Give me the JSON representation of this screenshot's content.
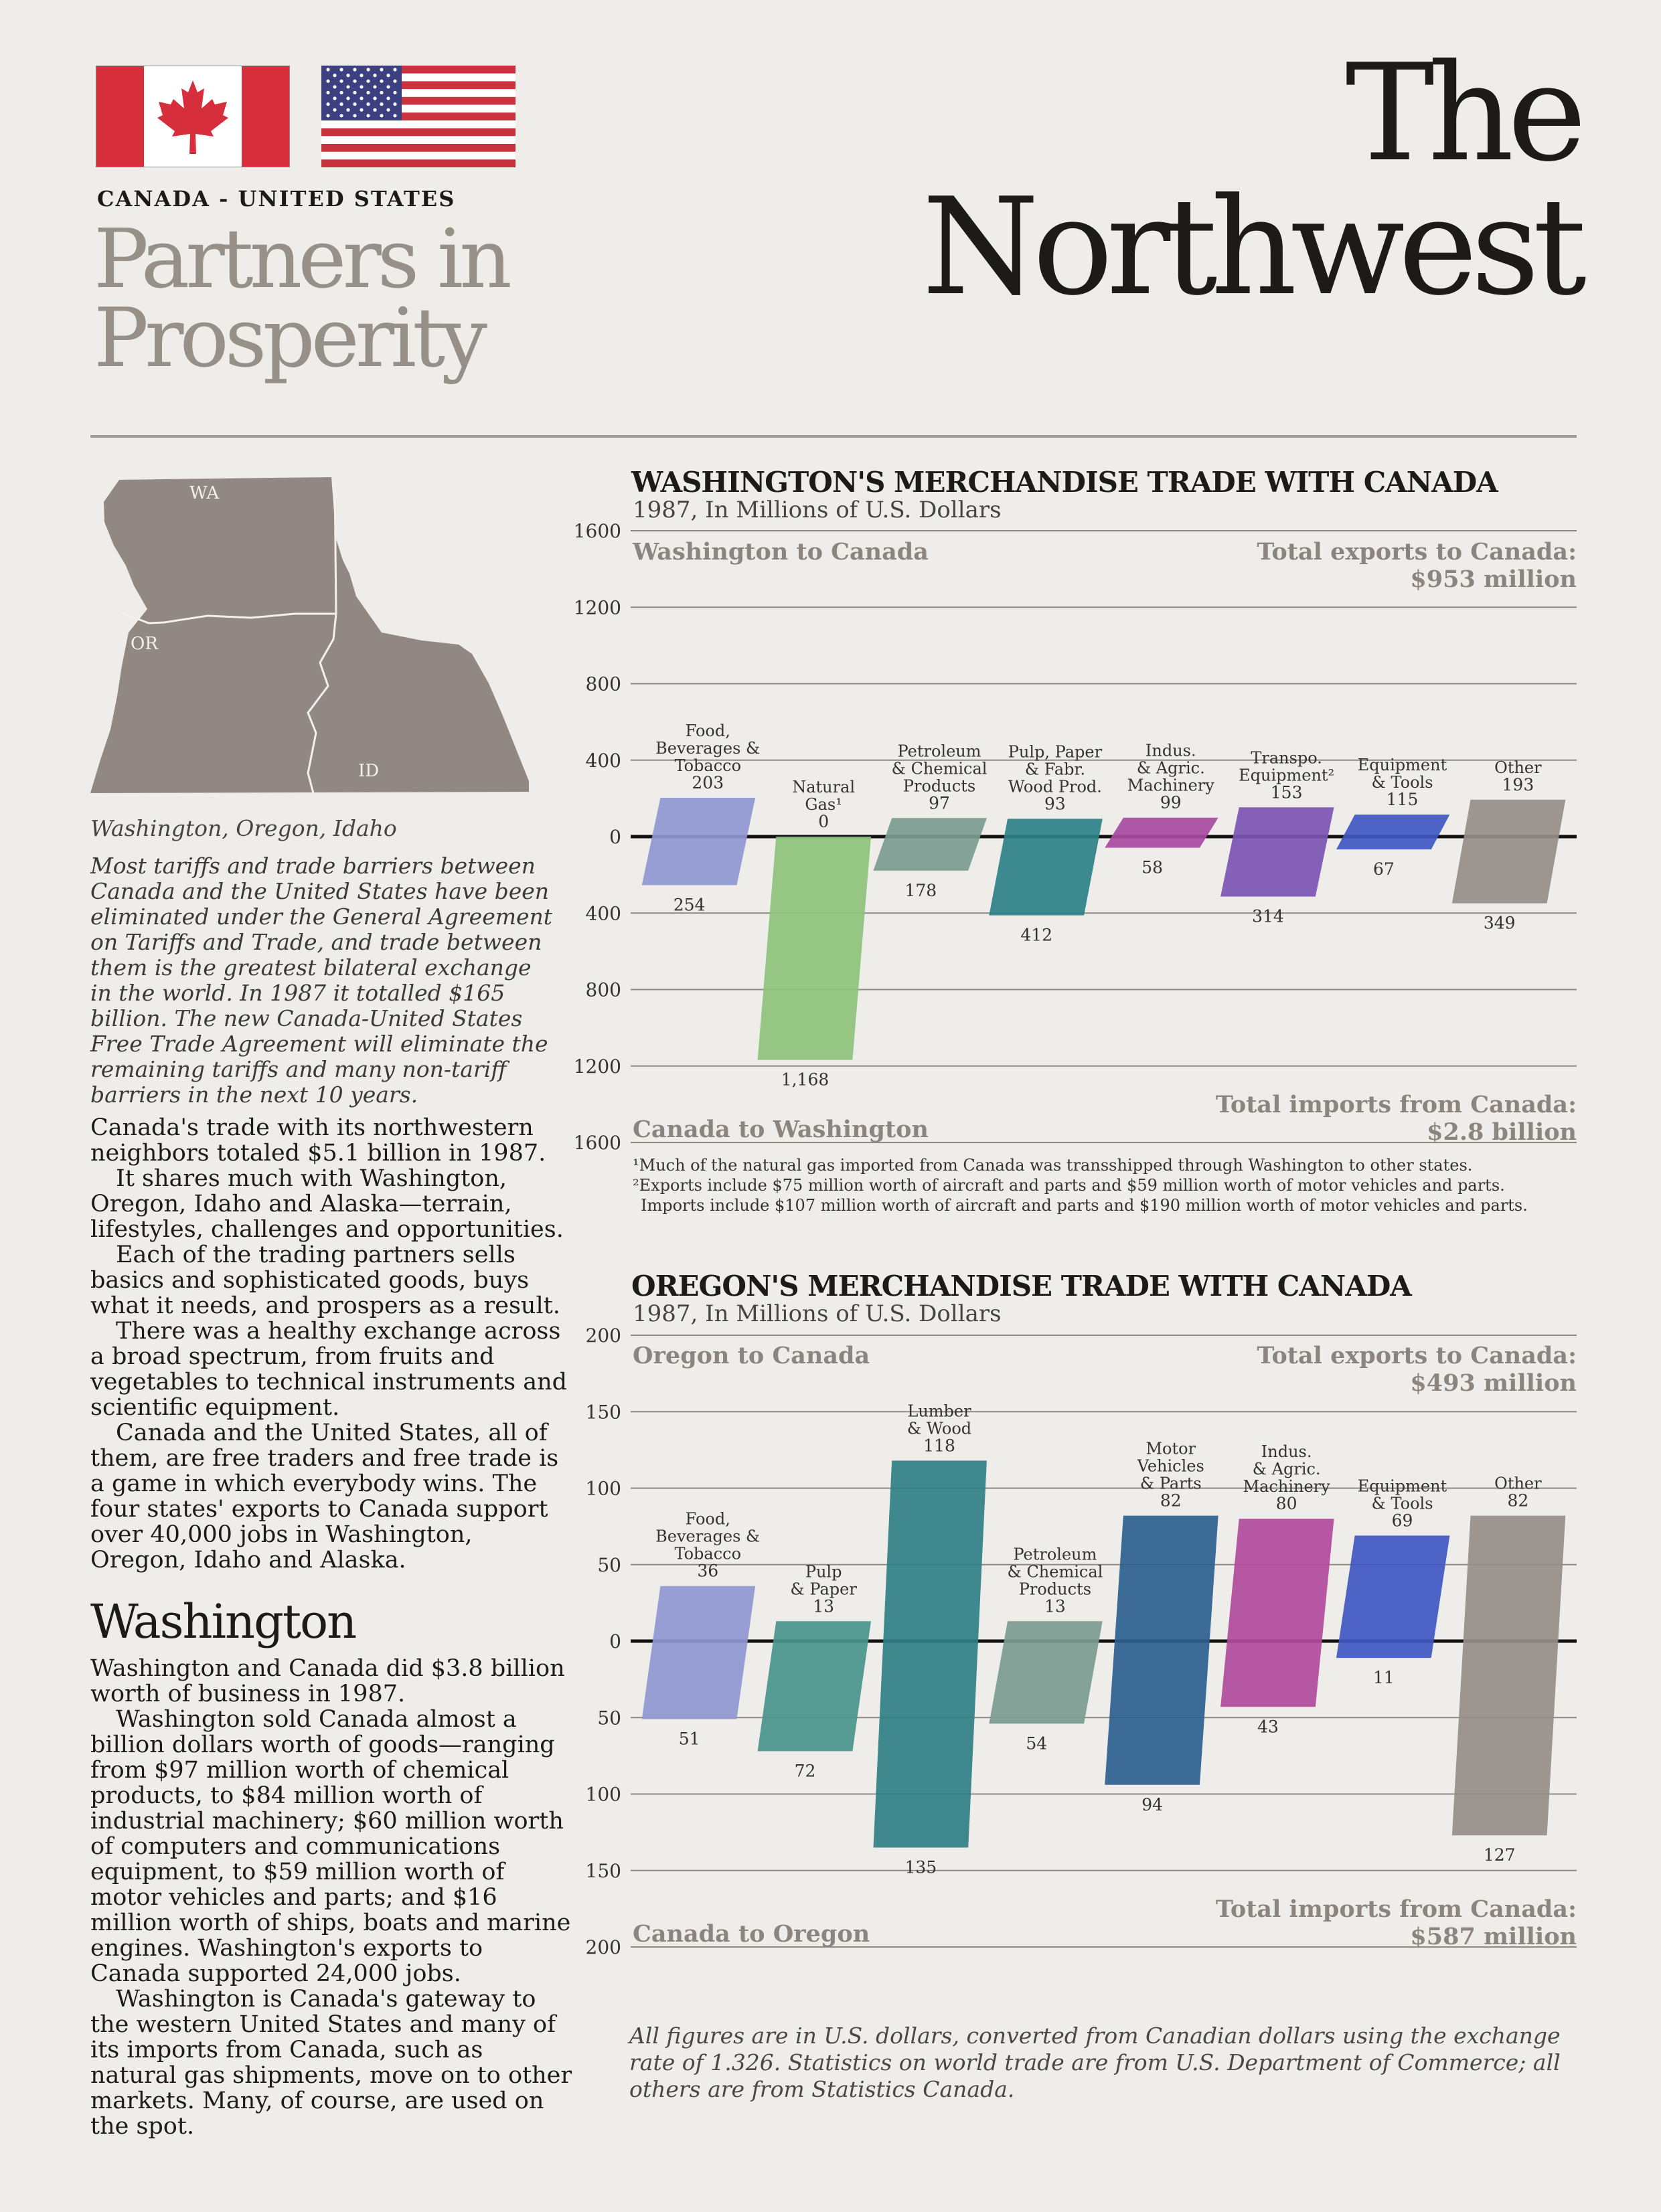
{
  "page": {
    "title": "The Northwest",
    "countries": "CANADA - UNITED STATES",
    "tagline_line1": "Partners in",
    "tagline_line2": "Prosperity"
  },
  "map": {
    "labels": [
      "WA",
      "OR",
      "ID"
    ],
    "caption": "Washington, Oregon, Idaho",
    "color": "#928883"
  },
  "intro": "Most tariffs and trade barriers between Canada and the United States have been eliminated under the General Agreement on Tariffs and Trade, and trade between them is the greatest bilateral exchange in the world. In 1987 it totalled $165 billion. The new Canada-United States Free Trade Agreement will eliminate the remaining tariffs and many non-tariff barriers in the next 10 years.",
  "body": [
    "Canada's trade with its northwestern neighbors totaled $5.1 billion in 1987.",
    "It shares much with Washington, Oregon, Idaho and Alaska—terrain, lifestyles, challenges and opportunities.",
    "Each of the trading partners sells basics and sophisticated goods, buys what it needs, and prospers as a result.",
    "There was a healthy exchange across a broad spectrum, from fruits and vegetables to technical instruments and scientific equipment.",
    "Canada and the United States, all of them, are free traders and free trade is a game in which everybody wins. The four states' exports to Canada support over 40,000 jobs in Washington, Oregon, Idaho and Alaska."
  ],
  "washington_section": {
    "heading": "Washington",
    "paragraphs": [
      "Washington and Canada did $3.8 billion worth of business in 1987.",
      "Washington sold Canada almost a billion dollars worth of goods—ranging from $97 million worth of chemical products, to $84 million worth of industrial machinery; $60 million worth of computers and communications equipment, to $59 million worth of motor vehicles and parts; and $16 million worth of ships, boats and marine engines. Washington's exports to Canada supported 24,000 jobs.",
      "Washington is Canada's gateway to the western United States and many of its imports from Canada, such as natural gas shipments, move on to other markets. Many, of course, are used on the spot."
    ]
  },
  "chart_data": [
    {
      "type": "bar",
      "title": "WASHINGTON'S MERCHANDISE TRADE WITH CANADA",
      "subtitle": "1987, In Millions of U.S. Dollars",
      "export_label": "Washington to Canada",
      "import_label": "Canada to Washington",
      "total_exports_label": "Total exports to Canada:",
      "total_exports_value": "$953 million",
      "total_imports_label": "Total imports from Canada:",
      "total_imports_value": "$2.8 billion",
      "ylim": [
        -1600,
        1600
      ],
      "y_ticks": [
        "1600",
        "1200",
        "800",
        "400",
        "0",
        "400",
        "800",
        "1200",
        "1600"
      ],
      "categories": [
        {
          "label": [
            "Food,",
            "Beverages &",
            "Tobacco"
          ],
          "export": 203,
          "export_label": "203",
          "import": 254,
          "import_label": "254",
          "color": "#8f97d0"
        },
        {
          "label": [
            "Natural",
            "Gas¹"
          ],
          "export": 0,
          "export_label": "0",
          "import": 1168,
          "import_label": "1,168",
          "color": "#8ec27b"
        },
        {
          "label": [
            "Petroleum",
            "& Chemical",
            "Products"
          ],
          "export": 97,
          "export_label": "97",
          "import": 178,
          "import_label": "178",
          "color": "#7c9b90"
        },
        {
          "label": [
            "Pulp, Paper",
            "& Fabr.",
            "Wood Prod."
          ],
          "export": 93,
          "export_label": "93",
          "import": 412,
          "import_label": "412",
          "color": "#2e8088"
        },
        {
          "label": [
            "Indus.",
            "& Agric.",
            "Machinery"
          ],
          "export": 99,
          "export_label": "99",
          "import": 58,
          "import_label": "58",
          "color": "#a84aa0"
        },
        {
          "label": [
            "Transpo.",
            "Equipment²"
          ],
          "export": 153,
          "export_label": "153",
          "import": 314,
          "import_label": "314",
          "color": "#7c54b3"
        },
        {
          "label": [
            "Equipment",
            "& Tools"
          ],
          "export": 115,
          "export_label": "115",
          "import": 67,
          "import_label": "67",
          "color": "#3f57c2"
        },
        {
          "label": [
            "Other"
          ],
          "export": 193,
          "export_label": "193",
          "import": 349,
          "import_label": "349",
          "color": "#958d88"
        }
      ],
      "footnotes": [
        "¹Much of the natural gas imported from Canada was transshipped through Washington to other states.",
        "²Exports include $75 million worth of aircraft and parts and $59 million worth of motor vehicles and parts.",
        "Imports include $107 million worth of aircraft and parts and $190 million worth of motor vehicles and parts."
      ]
    },
    {
      "type": "bar",
      "title": "OREGON'S MERCHANDISE TRADE WITH CANADA",
      "subtitle": "1987, In Millions of U.S. Dollars",
      "export_label": "Oregon to Canada",
      "import_label": "Canada to Oregon",
      "total_exports_label": "Total exports to Canada:",
      "total_exports_value": "$493 million",
      "total_imports_label": "Total imports from Canada:",
      "total_imports_value": "$587 million",
      "ylim": [
        -200,
        200
      ],
      "y_ticks": [
        "200",
        "150",
        "100",
        "50",
        "0",
        "50",
        "100",
        "150",
        "200"
      ],
      "categories": [
        {
          "label": [
            "Food,",
            "Beverages &",
            "Tobacco"
          ],
          "export": 36,
          "export_label": "36",
          "import": 51,
          "import_label": "51",
          "color": "#8f97d0"
        },
        {
          "label": [
            "Pulp",
            "& Paper"
          ],
          "export": 13,
          "export_label": "13",
          "import": 72,
          "import_label": "72",
          "color": "#4a958c"
        },
        {
          "label": [
            "Lumber",
            "& Wood"
          ],
          "export": 118,
          "export_label": "118",
          "import": 135,
          "import_label": "135",
          "color": "#2f7f85"
        },
        {
          "label": [
            "Petroleum",
            "& Chemical",
            "Products"
          ],
          "export": 13,
          "export_label": "13",
          "import": 54,
          "import_label": "54",
          "color": "#7c9b90"
        },
        {
          "label": [
            "Motor",
            "Vehicles",
            "& Parts"
          ],
          "export": 82,
          "export_label": "82",
          "import": 94,
          "import_label": "94",
          "color": "#2c5f8f"
        },
        {
          "label": [
            "Indus.",
            "& Agric.",
            "Machinery"
          ],
          "export": 80,
          "export_label": "80",
          "import": 43,
          "import_label": "43",
          "color": "#b04a9c"
        },
        {
          "label": [
            "Equipment",
            "& Tools"
          ],
          "export": 69,
          "export_label": "69",
          "import": 11,
          "import_label": "11",
          "color": "#3f57c2"
        },
        {
          "label": [
            "Other"
          ],
          "export": 82,
          "export_label": "82",
          "import": 127,
          "import_label": "127",
          "color": "#958d88"
        }
      ]
    }
  ],
  "source_note": "All figures are in U.S. dollars, converted from Canadian dollars using the exchange rate of 1.326. Statistics on world trade are from U.S. Department of Commerce; all others are from Statistics Canada.",
  "colors": {
    "canada_red": "#d62e3a",
    "us_red": "#c8333e",
    "us_blue": "#3c3f80",
    "gray_text": "#979089"
  }
}
